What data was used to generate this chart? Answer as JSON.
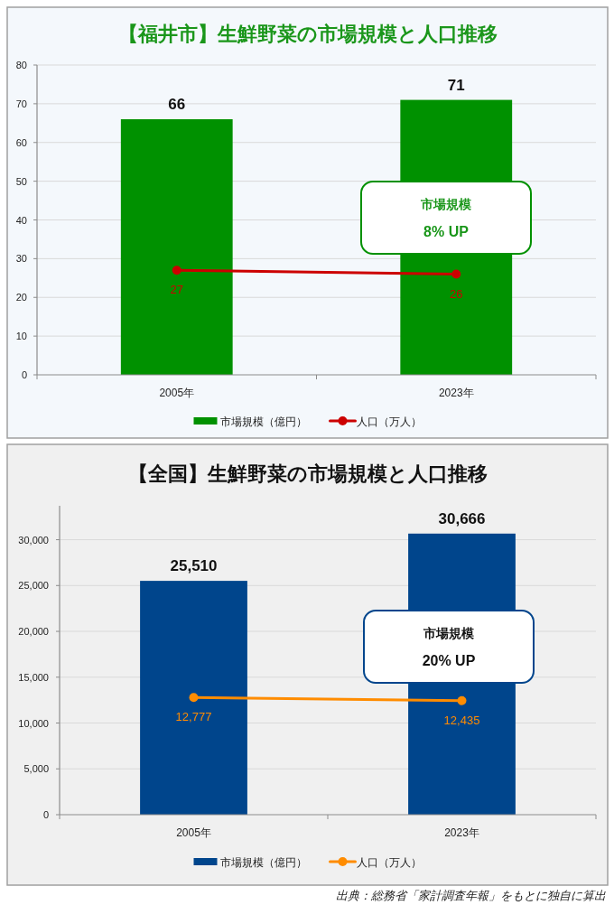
{
  "chart_data": [
    {
      "type": "bar",
      "title": "【福井市】生鮮野菜の市場規模と人口推移",
      "categories": [
        "2005年",
        "2023年"
      ],
      "series": [
        {
          "name": "市場規模（億円）",
          "color": "#009100",
          "values": [
            66,
            71
          ]
        },
        {
          "name": "人口（万人）",
          "type": "line",
          "color": "#cc0000",
          "values": [
            27,
            26
          ]
        }
      ],
      "ylim": [
        0,
        80
      ],
      "yticks": [
        0,
        10,
        20,
        30,
        40,
        50,
        60,
        70,
        80
      ],
      "grid": "y",
      "legend": "bottom",
      "marker": "circle",
      "data_labels": true,
      "annotations": [
        "市場規模",
        "8% UP"
      ]
    },
    {
      "type": "bar",
      "title": "【全国】生鮮野菜の市場規模と人口推移",
      "categories": [
        "2005年",
        "2023年"
      ],
      "series": [
        {
          "name": "市場規模（億円）",
          "color": "#00458c",
          "values": [
            25510,
            30666
          ],
          "value_labels": [
            "25,510",
            "30,666"
          ]
        },
        {
          "name": "人口（万人）",
          "type": "line",
          "color": "#ff8c00",
          "values": [
            12777,
            12435
          ],
          "value_labels": [
            "12,777",
            "12,435"
          ]
        }
      ],
      "ylim": [
        0,
        33700
      ],
      "yticks": [
        0,
        {
          "value": 5000,
          "label": "5,000"
        },
        {
          "value": 10000,
          "label": "10,000"
        },
        {
          "value": 15000,
          "label": "15,000"
        },
        {
          "value": 20000,
          "label": "20,000"
        },
        {
          "value": 25000,
          "label": "25,000"
        },
        {
          "value": 30000,
          "label": "30,000"
        }
      ],
      "grid": "y",
      "legend": "bottom",
      "marker": "circle",
      "annotations": [
        "市場規模",
        "20% UP",
        "出典：総務省「家計調査年報」をもとに独自に算出"
      ]
    }
  ]
}
